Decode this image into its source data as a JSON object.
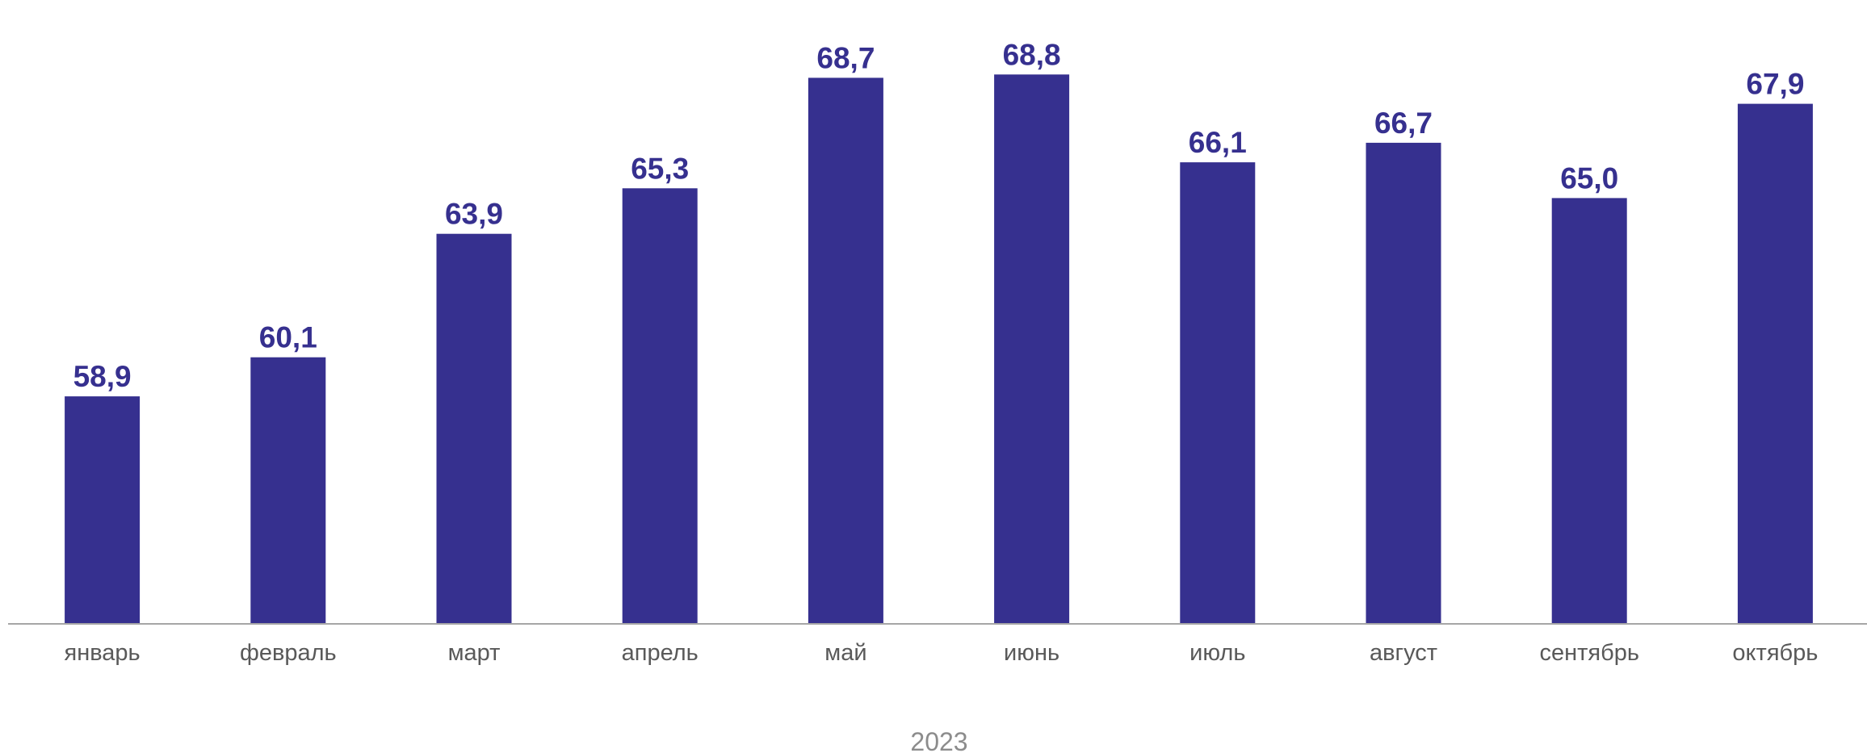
{
  "chart_data": {
    "type": "bar",
    "categories": [
      "январь",
      "февраль",
      "март",
      "апрель",
      "май",
      "июнь",
      "июль",
      "август",
      "сентябрь",
      "октябрь"
    ],
    "values": [
      58.9,
      60.1,
      63.9,
      65.3,
      68.7,
      68.8,
      66.1,
      66.7,
      65.0,
      67.9
    ],
    "value_labels": [
      "58,9",
      "60,1",
      "63,9",
      "65,3",
      "68,7",
      "68,8",
      "66,1",
      "66,7",
      "65,0",
      "67,9"
    ],
    "group_label": "2023",
    "ylim": [
      51.9,
      70.0
    ],
    "grid": false,
    "legend": "none",
    "bar_color": "#36308f",
    "label_color": "#36308f",
    "axis_color": "#a6a6a6"
  }
}
